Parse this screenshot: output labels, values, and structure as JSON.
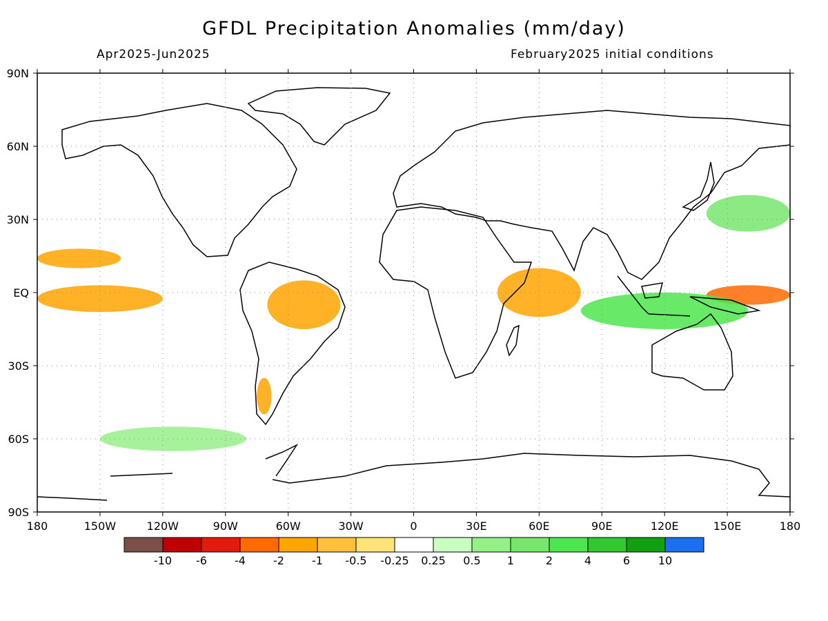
{
  "header": {
    "title": "GFDL Precipitation Anomalies (mm/day)",
    "period": "Apr2025-Jun2025",
    "init": "February2025 initial conditions"
  },
  "map": {
    "lat_labels": [
      "90N",
      "60N",
      "30N",
      "EQ",
      "30S",
      "60S",
      "90S"
    ],
    "lon_labels": [
      "180",
      "150W",
      "120W",
      "90W",
      "60W",
      "30W",
      "0",
      "30E",
      "60E",
      "90E",
      "120E",
      "150E",
      "180"
    ],
    "projection": "equirectangular",
    "grid": true
  },
  "legend": {
    "colors": [
      "#7a5048",
      "#c00000",
      "#e41a0e",
      "#ff6a00",
      "#ffa500",
      "#ffc13d",
      "#ffe378",
      "#ffffff",
      "#c8ffc0",
      "#96f08a",
      "#78e66e",
      "#4ee64e",
      "#32c832",
      "#12a012",
      "#1e6ef0"
    ],
    "labels": [
      "-10",
      "-6",
      "-4",
      "-2",
      "-1",
      "-0.5",
      "-0.25",
      "0.25",
      "0.5",
      "1",
      "2",
      "4",
      "6",
      "10"
    ]
  },
  "chart_data": {
    "type": "heatmap",
    "title": "GFDL Precipitation Anomalies (mm/day)",
    "units": "mm/day",
    "xlim": [
      -180,
      180
    ],
    "ylim": [
      -90,
      90
    ],
    "levels": [
      -10,
      -6,
      -4,
      -2,
      -1,
      -0.5,
      -0.25,
      0.25,
      0.5,
      1,
      2,
      4,
      6,
      10
    ],
    "anomaly_regions": [
      {
        "lon_range": [
          140,
          180
        ],
        "lat_range": [
          -5,
          3
        ],
        "value": -3
      },
      {
        "lon_range": [
          -180,
          -120
        ],
        "lat_range": [
          -8,
          3
        ],
        "value": -1.5
      },
      {
        "lon_range": [
          -180,
          -140
        ],
        "lat_range": [
          10,
          18
        ],
        "value": -1.5
      },
      {
        "lon_range": [
          -70,
          -35
        ],
        "lat_range": [
          -15,
          5
        ],
        "value": -1.2
      },
      {
        "lon_range": [
          40,
          80
        ],
        "lat_range": [
          -10,
          10
        ],
        "value": -1.2
      },
      {
        "lon_range": [
          80,
          160
        ],
        "lat_range": [
          -15,
          0
        ],
        "value": 2
      },
      {
        "lon_range": [
          140,
          180
        ],
        "lat_range": [
          25,
          40
        ],
        "value": 1
      },
      {
        "lon_range": [
          -75,
          -68
        ],
        "lat_range": [
          -50,
          -35
        ],
        "value": -2
      },
      {
        "lon_range": [
          -150,
          -80
        ],
        "lat_range": [
          -65,
          -55
        ],
        "value": 0.6
      }
    ]
  }
}
